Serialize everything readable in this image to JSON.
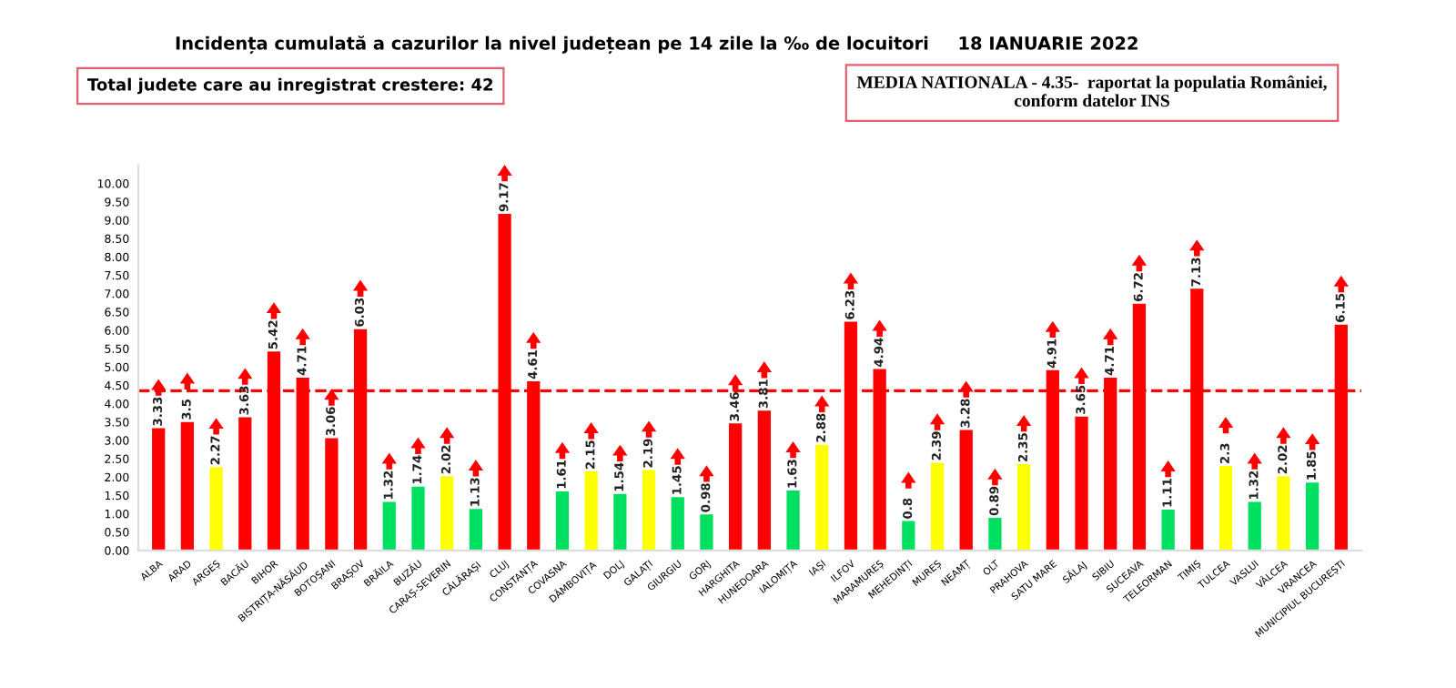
{
  "chart_data": {
    "type": "bar",
    "title": "Incidența cumulată a cazurilor la nivel județean pe 14 zile la ‰ de locuitori",
    "subtitle": "18 IANUARIE 2022",
    "annotations": [
      "Total judete care au inregistrat crestere: 42",
      "MEDIA NATIONALA - 4.35-  raportat la populatia României,\nconform datelor INS"
    ],
    "categories": [
      "ALBA",
      "ARAD",
      "ARGEȘ",
      "BACĂU",
      "BIHOR",
      "BISTRIȚA-NĂSĂUD",
      "BOTOȘANI",
      "BRAȘOV",
      "BRĂILA",
      "BUZĂU",
      "CARAȘ-SEVERIN",
      "CĂLĂRAȘI",
      "CLUJ",
      "CONSTANȚA",
      "COVASNA",
      "DÂMBOVIȚA",
      "DOLJ",
      "GALAȚI",
      "GIURGIU",
      "GORJ",
      "HARGHITA",
      "HUNEDOARA",
      "IALOMIȚA",
      "IAȘI",
      "ILFOV",
      "MARAMUREȘ",
      "MEHEDINȚI",
      "MUREȘ",
      "NEAMȚ",
      "OLT",
      "PRAHOVA",
      "SATU MARE",
      "SĂLAJ",
      "SIBIU",
      "SUCEAVA",
      "TELEORMAN",
      "TIMIȘ",
      "TULCEA",
      "VASLUI",
      "VÂLCEA",
      "VRANCEA",
      "MUNICIPIUL BUCUREȘTI"
    ],
    "values": [
      3.33,
      3.5,
      2.27,
      3.63,
      5.42,
      4.71,
      3.06,
      6.03,
      1.32,
      1.74,
      2.02,
      1.13,
      9.17,
      4.61,
      1.61,
      2.15,
      1.54,
      2.19,
      1.45,
      0.98,
      3.46,
      3.81,
      1.63,
      2.88,
      6.23,
      4.94,
      0.8,
      2.39,
      3.28,
      0.89,
      2.35,
      4.91,
      3.65,
      4.71,
      6.72,
      1.11,
      7.13,
      2.3,
      1.32,
      2.02,
      1.85,
      6.15
    ],
    "colors": [
      "#ff0000",
      "#ff0000",
      "#ffff00",
      "#ff0000",
      "#ff0000",
      "#ff0000",
      "#ff0000",
      "#ff0000",
      "#00e060",
      "#00e060",
      "#ffff00",
      "#00e060",
      "#ff0000",
      "#ff0000",
      "#00e060",
      "#ffff00",
      "#00e060",
      "#ffff00",
      "#00e060",
      "#00e060",
      "#ff0000",
      "#ff0000",
      "#00e060",
      "#ffff00",
      "#ff0000",
      "#ff0000",
      "#00e060",
      "#ffff00",
      "#ff0000",
      "#00e060",
      "#ffff00",
      "#ff0000",
      "#ff0000",
      "#ff0000",
      "#ff0000",
      "#00e060",
      "#ff0000",
      "#ffff00",
      "#00e060",
      "#ffff00",
      "#00e060",
      "#ff0000"
    ],
    "data_labels": true,
    "ylim": [
      0,
      10.5
    ],
    "yticks": [
      {
        "value": 0,
        "label": "0.00"
      },
      {
        "value": 0.5,
        "label": "0.50"
      },
      {
        "value": 1,
        "label": "1.00"
      },
      {
        "value": 1.5,
        "label": "1.50"
      },
      {
        "value": 2,
        "label": "2.00"
      },
      {
        "value": 2.5,
        "label": "2.50"
      },
      {
        "value": 3,
        "label": "3.00"
      },
      {
        "value": 3.5,
        "label": "3.50"
      },
      {
        "value": 4,
        "label": "4.00"
      },
      {
        "value": 4.5,
        "label": "4.50"
      },
      {
        "value": 5,
        "label": "5.00"
      },
      {
        "value": 5.5,
        "label": "5.50"
      },
      {
        "value": 6,
        "label": "6.00"
      },
      {
        "value": 6.5,
        "label": "6.50"
      },
      {
        "value": 7,
        "label": "7.00"
      },
      {
        "value": 7.5,
        "label": "7.50"
      },
      {
        "value": 8,
        "label": "8.00"
      },
      {
        "value": 8.5,
        "label": "8.50"
      },
      {
        "value": 9,
        "label": "9.00"
      },
      {
        "value": 9.5,
        "label": "9.50"
      },
      {
        "value": 10,
        "label": "10.00"
      }
    ],
    "ref_lines": [
      {
        "axis": "y",
        "value": 4.35,
        "color": "#ff0000",
        "line_style": "dashed"
      }
    ],
    "grid": false,
    "legend": false
  }
}
